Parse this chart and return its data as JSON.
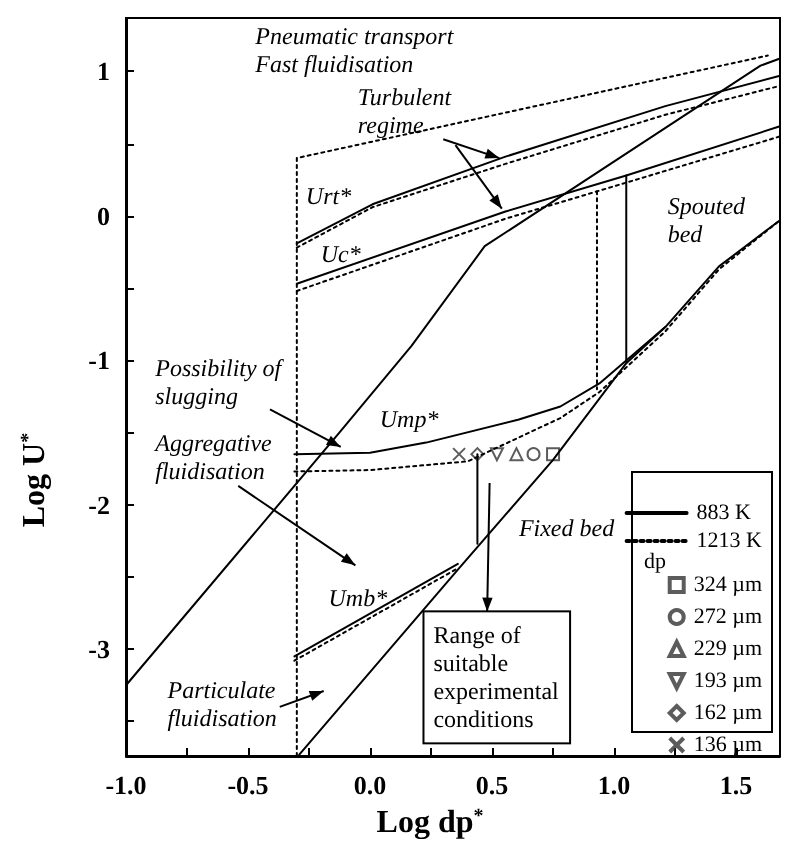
{
  "chart_data": {
    "type": "line",
    "xlabel": "Log dp$^{*}$",
    "ylabel": "Log U$^{*}$",
    "legend_title": "dp",
    "legend": "bottom right",
    "xlim": [
      -1.0,
      1.68
    ],
    "ylim": [
      -3.74,
      1.37
    ],
    "xticks": [
      {
        "value": -1,
        "label": "-1.0"
      },
      {
        "value": -0.75,
        "label": null
      },
      {
        "value": -0.5,
        "label": "-0.5"
      },
      {
        "value": -0.25,
        "label": null
      },
      {
        "value": 0,
        "label": "0.0"
      },
      {
        "value": 0.25,
        "label": null
      },
      {
        "value": 0.5,
        "label": "0.5"
      },
      {
        "value": 0.75,
        "label": null
      },
      {
        "value": 1,
        "label": "1.0"
      },
      {
        "value": 1.25,
        "label": null
      },
      {
        "value": 1.5,
        "label": "1.5"
      }
    ],
    "yticks": [
      {
        "value": -3.5,
        "label": null
      },
      -3,
      {
        "value": -2.5,
        "label": null
      },
      -2,
      {
        "value": -1.5,
        "label": null
      },
      -1,
      {
        "value": -0.5,
        "label": null
      },
      0,
      {
        "value": 0.5,
        "label": null
      },
      1
    ],
    "series": [
      {
        "name": "883 K",
        "color": "#000000",
        "line_style": "solid",
        "x": [
          -0.3,
          0.01,
          0.555,
          1.21,
          1.68
        ],
        "values": [
          -0.19,
          0.08,
          0.41,
          0.76,
          0.97
        ]
      },
      {
        "name": "1213 K",
        "color": "#000000",
        "line_style": "dotted",
        "x": [
          -0.3,
          0.01,
          0.555,
          1.21,
          1.68
        ],
        "values": [
          -0.22,
          0.06,
          0.36,
          0.7,
          0.9
        ]
      },
      {
        "color": "#000000",
        "line_style": "solid",
        "x": [
          -0.3,
          0.555,
          1.05,
          1.68
        ],
        "values": [
          -0.47,
          0.03,
          0.28,
          0.62
        ]
      },
      {
        "color": "#000000",
        "line_style": "dotted",
        "x": [
          -0.3,
          0.555,
          1.05,
          1.68
        ],
        "values": [
          -0.52,
          -0.02,
          0.23,
          0.55
        ]
      },
      {
        "color": "#000000",
        "line_style": "dotted",
        "x": [
          -0.3,
          -0.3,
          1.63
        ],
        "values": [
          -3.74,
          0.4,
          1.11
        ]
      },
      {
        "color": "#000000",
        "line_style": "dotted",
        "x": [
          0.93,
          0.93
        ],
        "values": [
          0.17,
          -1.2
        ]
      },
      {
        "color": "#000000",
        "line_style": "solid",
        "x": [
          1.05,
          1.05
        ],
        "values": [
          0.28,
          -1.02
        ]
      },
      {
        "color": "#000000",
        "line_style": "solid",
        "x": [
          -1.0,
          -0.13,
          0.17,
          0.47,
          1.6,
          1.68
        ],
        "values": [
          -3.25,
          -1.51,
          -0.9,
          -0.21,
          1.04,
          1.09
        ]
      },
      {
        "color": "#000000",
        "line_style": "solid",
        "x": [
          -0.31,
          0.0,
          0.23,
          0.61,
          0.78,
          0.94,
          1.21,
          1.43,
          1.68
        ],
        "values": [
          -1.65,
          -1.64,
          -1.57,
          -1.41,
          -1.32,
          -1.16,
          -0.77,
          -0.35,
          -0.03
        ]
      },
      {
        "color": "#000000",
        "line_style": "dotted",
        "x": [
          -0.31,
          0.0,
          0.4,
          0.78,
          0.94,
          1.21,
          1.43,
          1.68
        ],
        "values": [
          -1.77,
          -1.76,
          -1.7,
          -1.4,
          -1.22,
          -0.8,
          -0.37,
          -0.03
        ]
      },
      {
        "color": "#000000",
        "line_style": "solid",
        "x": [
          -0.29,
          0.36,
          0.75,
          1.05,
          1.21
        ],
        "values": [
          -3.73,
          -2.45,
          -1.69,
          -1.02,
          -0.77
        ]
      },
      {
        "color": "#000000",
        "line_style": "solid",
        "x": [
          -0.31,
          0.36
        ],
        "values": [
          -3.05,
          -2.41
        ]
      },
      {
        "color": "#000000",
        "line_style": "dotted",
        "x": [
          -0.31,
          0.36
        ],
        "values": [
          -3.08,
          -2.44
        ]
      },
      {
        "color": "#000000",
        "line_style": "solid",
        "x": [
          0.44,
          0.44
        ],
        "values": [
          -1.65,
          -2.27
        ]
      },
      {
        "type": "scatter",
        "name": "324 µm",
        "marker": "square",
        "color": "#333333",
        "x": [
          0.75
        ],
        "values": [
          -1.65
        ]
      },
      {
        "type": "scatter",
        "name": "272 µm",
        "marker": "circle",
        "color": "#333333",
        "x": [
          0.67
        ],
        "values": [
          -1.65
        ]
      },
      {
        "type": "scatter",
        "name": "229 µm",
        "marker": "triangle",
        "color": "#333333",
        "x": [
          0.6
        ],
        "values": [
          -1.65
        ]
      },
      {
        "type": "scatter",
        "name": "193 µm",
        "marker": "triangle_down",
        "color": "#333333",
        "x": [
          0.52
        ],
        "values": [
          -1.65
        ]
      },
      {
        "type": "scatter",
        "name": "162 µm",
        "marker": "diamond",
        "color": "#333333",
        "x": [
          0.44
        ],
        "values": [
          -1.65
        ]
      },
      {
        "type": "scatter",
        "name": "136 µm",
        "marker": "cross",
        "color": "#333333",
        "x": [
          0.365
        ],
        "values": [
          -1.65
        ]
      }
    ],
    "annotations": [
      "Pneumatic transport\nFast fluidisation",
      "Turbulent\nregime",
      "Urt*",
      "Uc*",
      "Spouted\nbed",
      "Possibility of\nslugging",
      "Ump*",
      "Aggregative\nfluidisation",
      "Fixed bed",
      "Umb*",
      "Particulate\nfluidisation",
      "Range of\nsuitable\nexperimental\nconditions"
    ]
  }
}
